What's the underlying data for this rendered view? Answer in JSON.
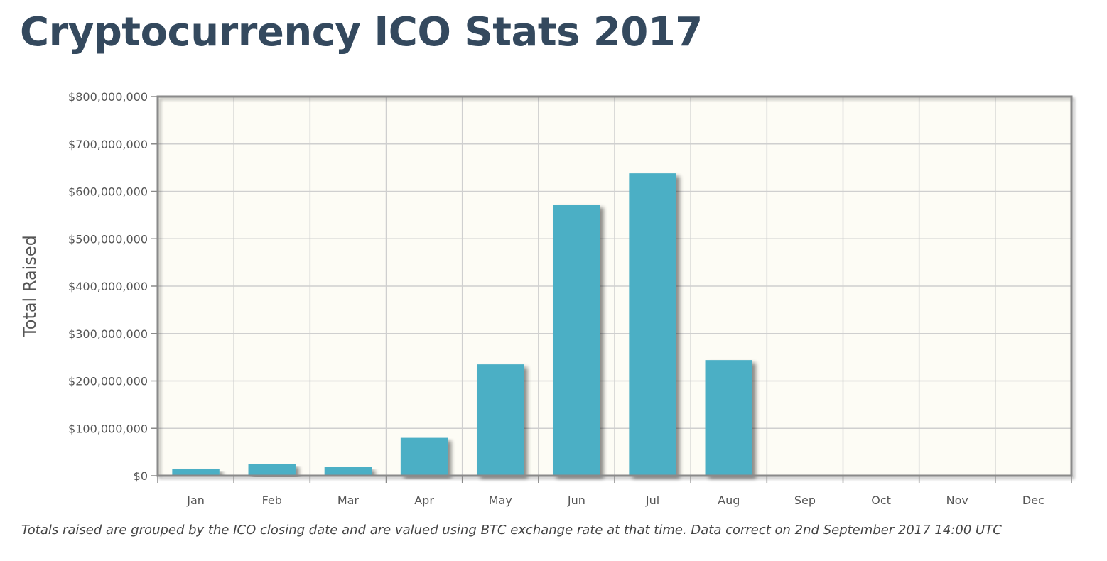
{
  "page": {
    "title": "Cryptocurrency ICO Stats 2017",
    "footnote": "Totals raised are grouped by the ICO closing date and are valued using BTC exchange rate at that time. Data correct on 2nd September 2017 14:00 UTC"
  },
  "chart_data": {
    "type": "bar",
    "title": "",
    "xlabel": "",
    "ylabel": "Total Raised",
    "categories": [
      "Jan",
      "Feb",
      "Mar",
      "Apr",
      "May",
      "Jun",
      "Jul",
      "Aug",
      "Sep",
      "Oct",
      "Nov",
      "Dec"
    ],
    "values": [
      15000000,
      25000000,
      18000000,
      80000000,
      235000000,
      572000000,
      638000000,
      244000000,
      0,
      0,
      0,
      0
    ],
    "ylim": [
      0,
      800000000
    ],
    "yticks": [
      0,
      100000000,
      200000000,
      300000000,
      400000000,
      500000000,
      600000000,
      700000000,
      800000000
    ],
    "ytick_labels": [
      "$0",
      "$100,000,000",
      "$200,000,000",
      "$300,000,000",
      "$400,000,000",
      "$500,000,000",
      "$600,000,000",
      "$700,000,000",
      "$800,000,000"
    ],
    "grid": true,
    "colors": {
      "bar": "#4bafc5",
      "plot_background": "#fdfcf5",
      "grid": "#cfcfcf",
      "frame": "#8a8a8a",
      "shadow": "#999999"
    }
  }
}
